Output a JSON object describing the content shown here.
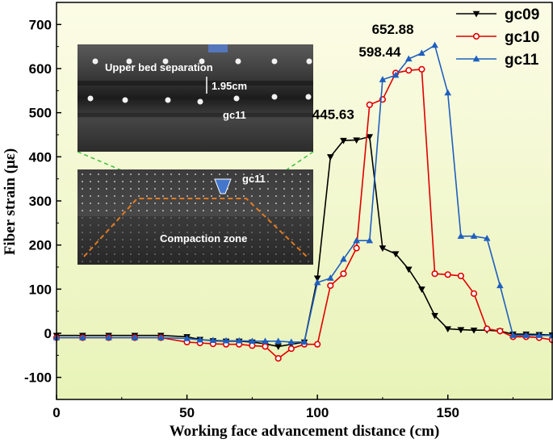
{
  "chart_data": {
    "type": "line",
    "xlabel": "Working face advancement distance (cm)",
    "ylabel": "Fiber strain (με)",
    "xlim": [
      0,
      190
    ],
    "ylim": [
      -150,
      750
    ],
    "x_ticks": [
      0,
      50,
      100,
      150
    ],
    "y_ticks": [
      -100,
      0,
      100,
      200,
      300,
      400,
      500,
      600,
      700
    ],
    "legend_position": "top-right",
    "background_colors": [
      "#fcfce6",
      "#e8f3b8"
    ],
    "series": [
      {
        "name": "gc09",
        "color": "#000000",
        "marker": "triangle-down",
        "points": [
          [
            0,
            -5
          ],
          [
            10,
            -5
          ],
          [
            20,
            -5
          ],
          [
            30,
            -5
          ],
          [
            40,
            -5
          ],
          [
            50,
            -8
          ],
          [
            55,
            -14
          ],
          [
            60,
            -17
          ],
          [
            65,
            -18
          ],
          [
            70,
            -18
          ],
          [
            75,
            -20
          ],
          [
            80,
            -24
          ],
          [
            85,
            -30
          ],
          [
            90,
            -25
          ],
          [
            95,
            -20
          ],
          [
            100,
            125
          ],
          [
            105,
            400
          ],
          [
            110,
            437
          ],
          [
            115,
            438
          ],
          [
            120,
            445.63
          ],
          [
            125,
            193
          ],
          [
            130,
            180
          ],
          [
            135,
            145
          ],
          [
            140,
            100
          ],
          [
            145,
            40
          ],
          [
            150,
            10
          ],
          [
            155,
            8
          ],
          [
            160,
            7
          ],
          [
            165,
            7
          ],
          [
            170,
            5
          ],
          [
            175,
            -2
          ],
          [
            180,
            -2
          ],
          [
            185,
            -3
          ],
          [
            190,
            -4
          ]
        ]
      },
      {
        "name": "gc10",
        "color": "#e00000",
        "marker": "circle",
        "points": [
          [
            0,
            -10
          ],
          [
            10,
            -10
          ],
          [
            20,
            -10
          ],
          [
            30,
            -10
          ],
          [
            40,
            -10
          ],
          [
            50,
            -20
          ],
          [
            55,
            -22
          ],
          [
            60,
            -24
          ],
          [
            65,
            -25
          ],
          [
            70,
            -25
          ],
          [
            75,
            -28
          ],
          [
            80,
            -30
          ],
          [
            85,
            -57
          ],
          [
            90,
            -35
          ],
          [
            95,
            -25
          ],
          [
            100,
            -25
          ],
          [
            105,
            108
          ],
          [
            110,
            135
          ],
          [
            115,
            193
          ],
          [
            120,
            518
          ],
          [
            125,
            530
          ],
          [
            130,
            590
          ],
          [
            135,
            596
          ],
          [
            140,
            598.44
          ],
          [
            145,
            135
          ],
          [
            150,
            133
          ],
          [
            155,
            130
          ],
          [
            160,
            90
          ],
          [
            165,
            10
          ],
          [
            170,
            5
          ],
          [
            175,
            -8
          ],
          [
            180,
            -8
          ],
          [
            185,
            -10
          ],
          [
            190,
            -15
          ]
        ]
      },
      {
        "name": "gc11",
        "color": "#1f5fbf",
        "marker": "triangle-up",
        "points": [
          [
            0,
            -10
          ],
          [
            10,
            -10
          ],
          [
            20,
            -10
          ],
          [
            30,
            -10
          ],
          [
            40,
            -10
          ],
          [
            50,
            -12
          ],
          [
            55,
            -15
          ],
          [
            60,
            -16
          ],
          [
            65,
            -17
          ],
          [
            70,
            -17
          ],
          [
            75,
            -18
          ],
          [
            80,
            -18
          ],
          [
            85,
            -18
          ],
          [
            90,
            -20
          ],
          [
            95,
            -20
          ],
          [
            100,
            115
          ],
          [
            105,
            125
          ],
          [
            110,
            168
          ],
          [
            115,
            210
          ],
          [
            120,
            210
          ],
          [
            125,
            575
          ],
          [
            130,
            585
          ],
          [
            135,
            622
          ],
          [
            140,
            635
          ],
          [
            145,
            652.88
          ],
          [
            150,
            545
          ],
          [
            155,
            220
          ],
          [
            160,
            220
          ],
          [
            165,
            215
          ],
          [
            170,
            108
          ],
          [
            175,
            -5
          ],
          [
            180,
            -5
          ],
          [
            185,
            -5
          ],
          [
            190,
            -5
          ]
        ]
      }
    ],
    "annotations": [
      {
        "text": "445.63",
        "x": 120,
        "y": 445.63
      },
      {
        "text": "598.44",
        "x": 140,
        "y": 598.44
      },
      {
        "text": "652.88",
        "x": 145,
        "y": 652.88
      }
    ],
    "inset": {
      "upper_label": "Upper bed separation",
      "gap_label": "1.95cm",
      "sensor_label_upper": "gc11",
      "sensor_label_lower": "gc11",
      "zone_label": "Compaction zone"
    }
  }
}
